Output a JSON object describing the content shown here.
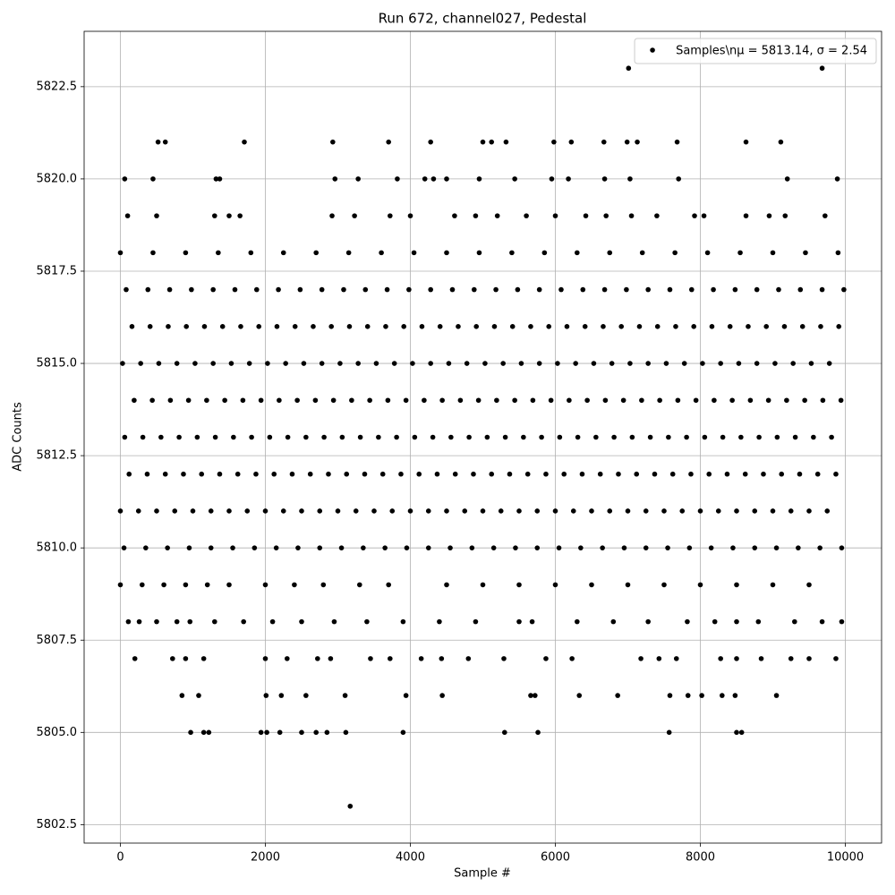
{
  "chart_data": {
    "type": "scatter",
    "title": "Run 672, channel027, Pedestal",
    "x_label": "Sample #",
    "y_label": "ADC Counts",
    "xlim": [
      -500,
      10500
    ],
    "ylim": [
      5802.0,
      5824.0
    ],
    "xticks": [
      0,
      2000,
      4000,
      6000,
      8000,
      10000
    ],
    "yticks": [
      5802.5,
      {
        "value": 5805,
        "label": "5805.0"
      },
      5807.5,
      {
        "value": 5810,
        "label": "5810.0"
      },
      5812.5,
      {
        "value": 5815,
        "label": "5815.0"
      },
      5817.5,
      {
        "value": 5820,
        "label": "5820.0"
      },
      5822.5
    ],
    "grid": true,
    "legend": "upper right",
    "x": [
      7010,
      9680,
      3170,
      970,
      1150,
      1220,
      1940,
      2020,
      2200,
      2500,
      2700,
      2850,
      3110,
      3900,
      5300,
      5760,
      7570,
      8500,
      8570,
      850,
      1080,
      2010,
      2220,
      2560,
      3100,
      3940,
      4440,
      5660,
      5720,
      6330,
      6860,
      7580,
      7830,
      8020,
      8300,
      8480,
      9050,
      520,
      620,
      1710,
      2930,
      3700,
      4280,
      5000,
      5120,
      5320,
      5980,
      6220,
      6670,
      6990,
      7130,
      7680,
      8630,
      9110,
      60,
      450,
      1320,
      1370,
      2960,
      3280,
      3820,
      4200,
      4320,
      4500,
      4950,
      5440,
      5950,
      6180,
      6680,
      7030,
      7700,
      9200,
      9890,
      100,
      500,
      1300,
      1500,
      1650,
      2920,
      3230,
      3720,
      4000,
      4610,
      4900,
      5200,
      5600,
      6000,
      6420,
      6700,
      7050,
      7400,
      7920,
      8050,
      8630,
      8950,
      9170,
      9720,
      200,
      720,
      900,
      1150,
      2000,
      2300,
      2720,
      2900,
      3450,
      3720,
      4150,
      4430,
      4800,
      5290,
      5870,
      6230,
      7180,
      7430,
      7670,
      8280,
      8500,
      8840,
      9250,
      9500,
      9870,
      110,
      260,
      500,
      780,
      960,
      1300,
      1700,
      2100,
      2500,
      2950,
      3400,
      3900,
      4400,
      4900,
      5500,
      5680,
      6300,
      6800,
      7280,
      7820,
      8200,
      8500,
      8800,
      9300,
      9680,
      9950,
      0,
      300,
      600,
      900,
      1200,
      1500,
      2000,
      2400,
      2800,
      3300,
      3700,
      4500,
      5000,
      5500,
      6000,
      6500,
      7000,
      7500,
      8000,
      8500,
      9000,
      9500,
      50,
      350,
      650,
      950,
      1250,
      1550,
      1850,
      2150,
      2450,
      2750,
      3050,
      3350,
      3650,
      3950,
      4250,
      4550,
      4850,
      5150,
      5450,
      5750,
      6050,
      6350,
      6650,
      6950,
      7250,
      7550,
      7850,
      8150,
      8450,
      8750,
      9050,
      9350,
      9650,
      9950,
      0,
      250,
      500,
      750,
      1000,
      1250,
      1500,
      1750,
      2000,
      2250,
      2500,
      2750,
      3000,
      3250,
      3500,
      3750,
      4000,
      4250,
      4500,
      4750,
      5000,
      5250,
      5500,
      5750,
      6000,
      6250,
      6500,
      6750,
      7000,
      7250,
      7500,
      7750,
      8000,
      8250,
      8500,
      8750,
      9000,
      9250,
      9500,
      9750,
      120,
      370,
      620,
      870,
      1120,
      1370,
      1620,
      1870,
      2120,
      2370,
      2620,
      2870,
      3120,
      3370,
      3620,
      3870,
      4120,
      4370,
      4620,
      4870,
      5120,
      5370,
      5620,
      5870,
      6120,
      6370,
      6620,
      6870,
      7120,
      7370,
      7620,
      7870,
      8120,
      8370,
      8620,
      8870,
      9120,
      9370,
      9620,
      9870,
      60,
      310,
      560,
      810,
      1060,
      1310,
      1560,
      1810,
      2060,
      2310,
      2560,
      2810,
      3060,
      3310,
      3560,
      3810,
      4060,
      4310,
      4560,
      4810,
      5060,
      5310,
      5560,
      5810,
      6060,
      6310,
      6560,
      6810,
      7060,
      7310,
      7560,
      7810,
      8060,
      8310,
      8560,
      8810,
      9060,
      9310,
      9560,
      9810,
      190,
      440,
      690,
      940,
      1190,
      1440,
      1690,
      1940,
      2190,
      2440,
      2690,
      2940,
      3190,
      3440,
      3690,
      3940,
      4190,
      4440,
      4690,
      4940,
      5190,
      5440,
      5690,
      5940,
      6190,
      6440,
      6690,
      6940,
      7190,
      7440,
      7690,
      7940,
      8190,
      8440,
      8690,
      8940,
      9190,
      9440,
      9690,
      9940,
      30,
      280,
      530,
      780,
      1030,
      1280,
      1530,
      1780,
      2030,
      2280,
      2530,
      2780,
      3030,
      3280,
      3530,
      3780,
      4030,
      4280,
      4530,
      4780,
      5030,
      5280,
      5530,
      5780,
      6030,
      6280,
      6530,
      6780,
      7030,
      7280,
      7530,
      7780,
      8030,
      8280,
      8530,
      8780,
      9030,
      9280,
      9530,
      9780,
      160,
      410,
      660,
      910,
      1160,
      1410,
      1660,
      1910,
      2160,
      2410,
      2660,
      2910,
      3160,
      3410,
      3660,
      3910,
      4160,
      4410,
      4660,
      4910,
      5160,
      5410,
      5660,
      5910,
      6160,
      6410,
      6660,
      6910,
      7160,
      7410,
      7660,
      7910,
      8160,
      8410,
      8660,
      8910,
      9160,
      9410,
      9660,
      9910,
      80,
      380,
      680,
      980,
      1280,
      1580,
      1880,
      2180,
      2480,
      2780,
      3080,
      3380,
      3680,
      3980,
      4280,
      4580,
      4880,
      5180,
      5480,
      5780,
      6080,
      6380,
      6680,
      6980,
      7280,
      7580,
      7880,
      8180,
      8480,
      8780,
      9080,
      9380,
      9680,
      9980,
      0,
      450,
      900,
      1350,
      1800,
      2250,
      2700,
      3150,
      3600,
      4050,
      4500,
      4950,
      5400,
      5850,
      6300,
      6750,
      7200,
      7650,
      8100,
      8550,
      9000,
      9450,
      9900
    ],
    "series": [
      {
        "name": "Samples\\nμ = 5813.14, σ = 2.54",
        "color": "#000000",
        "values": [
          5823,
          5823,
          5803,
          5805,
          5805,
          5805,
          5805,
          5805,
          5805,
          5805,
          5805,
          5805,
          5805,
          5805,
          5805,
          5805,
          5805,
          5805,
          5805,
          5806,
          5806,
          5806,
          5806,
          5806,
          5806,
          5806,
          5806,
          5806,
          5806,
          5806,
          5806,
          5806,
          5806,
          5806,
          5806,
          5806,
          5806,
          5821,
          5821,
          5821,
          5821,
          5821,
          5821,
          5821,
          5821,
          5821,
          5821,
          5821,
          5821,
          5821,
          5821,
          5821,
          5821,
          5821,
          5820,
          5820,
          5820,
          5820,
          5820,
          5820,
          5820,
          5820,
          5820,
          5820,
          5820,
          5820,
          5820,
          5820,
          5820,
          5820,
          5820,
          5820,
          5820,
          5819,
          5819,
          5819,
          5819,
          5819,
          5819,
          5819,
          5819,
          5819,
          5819,
          5819,
          5819,
          5819,
          5819,
          5819,
          5819,
          5819,
          5819,
          5819,
          5819,
          5819,
          5819,
          5819,
          5819,
          5807,
          5807,
          5807,
          5807,
          5807,
          5807,
          5807,
          5807,
          5807,
          5807,
          5807,
          5807,
          5807,
          5807,
          5807,
          5807,
          5807,
          5807,
          5807,
          5807,
          5807,
          5807,
          5807,
          5807,
          5807,
          5808,
          5808,
          5808,
          5808,
          5808,
          5808,
          5808,
          5808,
          5808,
          5808,
          5808,
          5808,
          5808,
          5808,
          5808,
          5808,
          5808,
          5808,
          5808,
          5808,
          5808,
          5808,
          5808,
          5808,
          5808,
          5808,
          5809,
          5809,
          5809,
          5809,
          5809,
          5809,
          5809,
          5809,
          5809,
          5809,
          5809,
          5809,
          5809,
          5809,
          5809,
          5809,
          5809,
          5809,
          5809,
          5809,
          5809,
          5809,
          5810,
          5810,
          5810,
          5810,
          5810,
          5810,
          5810,
          5810,
          5810,
          5810,
          5810,
          5810,
          5810,
          5810,
          5810,
          5810,
          5810,
          5810,
          5810,
          5810,
          5810,
          5810,
          5810,
          5810,
          5810,
          5810,
          5810,
          5810,
          5810,
          5810,
          5810,
          5810,
          5810,
          5810,
          5811,
          5811,
          5811,
          5811,
          5811,
          5811,
          5811,
          5811,
          5811,
          5811,
          5811,
          5811,
          5811,
          5811,
          5811,
          5811,
          5811,
          5811,
          5811,
          5811,
          5811,
          5811,
          5811,
          5811,
          5811,
          5811,
          5811,
          5811,
          5811,
          5811,
          5811,
          5811,
          5811,
          5811,
          5811,
          5811,
          5811,
          5811,
          5811,
          5811,
          5812,
          5812,
          5812,
          5812,
          5812,
          5812,
          5812,
          5812,
          5812,
          5812,
          5812,
          5812,
          5812,
          5812,
          5812,
          5812,
          5812,
          5812,
          5812,
          5812,
          5812,
          5812,
          5812,
          5812,
          5812,
          5812,
          5812,
          5812,
          5812,
          5812,
          5812,
          5812,
          5812,
          5812,
          5812,
          5812,
          5812,
          5812,
          5812,
          5812,
          5813,
          5813,
          5813,
          5813,
          5813,
          5813,
          5813,
          5813,
          5813,
          5813,
          5813,
          5813,
          5813,
          5813,
          5813,
          5813,
          5813,
          5813,
          5813,
          5813,
          5813,
          5813,
          5813,
          5813,
          5813,
          5813,
          5813,
          5813,
          5813,
          5813,
          5813,
          5813,
          5813,
          5813,
          5813,
          5813,
          5813,
          5813,
          5813,
          5813,
          5814,
          5814,
          5814,
          5814,
          5814,
          5814,
          5814,
          5814,
          5814,
          5814,
          5814,
          5814,
          5814,
          5814,
          5814,
          5814,
          5814,
          5814,
          5814,
          5814,
          5814,
          5814,
          5814,
          5814,
          5814,
          5814,
          5814,
          5814,
          5814,
          5814,
          5814,
          5814,
          5814,
          5814,
          5814,
          5814,
          5814,
          5814,
          5814,
          5814,
          5815,
          5815,
          5815,
          5815,
          5815,
          5815,
          5815,
          5815,
          5815,
          5815,
          5815,
          5815,
          5815,
          5815,
          5815,
          5815,
          5815,
          5815,
          5815,
          5815,
          5815,
          5815,
          5815,
          5815,
          5815,
          5815,
          5815,
          5815,
          5815,
          5815,
          5815,
          5815,
          5815,
          5815,
          5815,
          5815,
          5815,
          5815,
          5815,
          5815,
          5816,
          5816,
          5816,
          5816,
          5816,
          5816,
          5816,
          5816,
          5816,
          5816,
          5816,
          5816,
          5816,
          5816,
          5816,
          5816,
          5816,
          5816,
          5816,
          5816,
          5816,
          5816,
          5816,
          5816,
          5816,
          5816,
          5816,
          5816,
          5816,
          5816,
          5816,
          5816,
          5816,
          5816,
          5816,
          5816,
          5816,
          5816,
          5816,
          5816,
          5817,
          5817,
          5817,
          5817,
          5817,
          5817,
          5817,
          5817,
          5817,
          5817,
          5817,
          5817,
          5817,
          5817,
          5817,
          5817,
          5817,
          5817,
          5817,
          5817,
          5817,
          5817,
          5817,
          5817,
          5817,
          5817,
          5817,
          5817,
          5817,
          5817,
          5817,
          5817,
          5817,
          5817,
          5818,
          5818,
          5818,
          5818,
          5818,
          5818,
          5818,
          5818,
          5818,
          5818,
          5818,
          5818,
          5818,
          5818,
          5818,
          5818,
          5818,
          5818,
          5818,
          5818,
          5818,
          5818,
          5818
        ]
      }
    ]
  }
}
